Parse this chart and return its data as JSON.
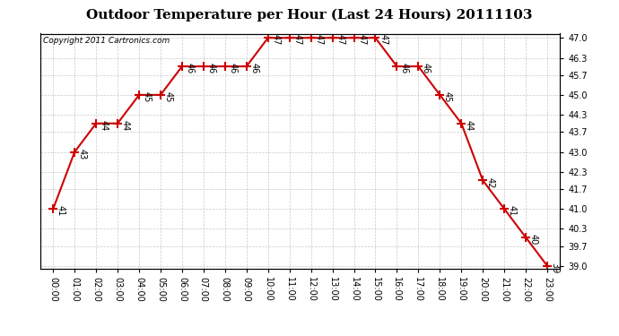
{
  "title": "Outdoor Temperature per Hour (Last 24 Hours) 20111103",
  "copyright_text": "Copyright 2011 Cartronics.com",
  "hours": [
    "00:00",
    "01:00",
    "02:00",
    "03:00",
    "04:00",
    "05:00",
    "06:00",
    "07:00",
    "08:00",
    "09:00",
    "10:00",
    "11:00",
    "12:00",
    "13:00",
    "14:00",
    "15:00",
    "16:00",
    "17:00",
    "18:00",
    "19:00",
    "20:00",
    "21:00",
    "22:00",
    "23:00"
  ],
  "temps": [
    41,
    43,
    44,
    44,
    45,
    45,
    46,
    46,
    46,
    46,
    47,
    47,
    47,
    47,
    47,
    47,
    46,
    46,
    45,
    44,
    42,
    41,
    40,
    39
  ],
  "line_color": "#cc0000",
  "marker": "+",
  "marker_size": 7,
  "marker_color": "#cc0000",
  "bg_color": "#ffffff",
  "plot_bg_color": "#ffffff",
  "grid_color": "#bbbbbb",
  "yticks": [
    39.0,
    39.7,
    40.3,
    41.0,
    41.7,
    42.3,
    43.0,
    43.7,
    44.3,
    45.0,
    45.7,
    46.3,
    47.0
  ],
  "ytick_labels": [
    "39.0",
    "39.7",
    "40.3",
    "41.0",
    "41.7",
    "42.3",
    "43.0",
    "43.7",
    "44.3",
    "45.0",
    "45.7",
    "46.3",
    "47.0"
  ],
  "ylim": [
    38.9,
    47.15
  ],
  "title_fontsize": 11,
  "annotation_fontsize": 7,
  "tick_fontsize": 7,
  "copyright_fontsize": 6.5
}
